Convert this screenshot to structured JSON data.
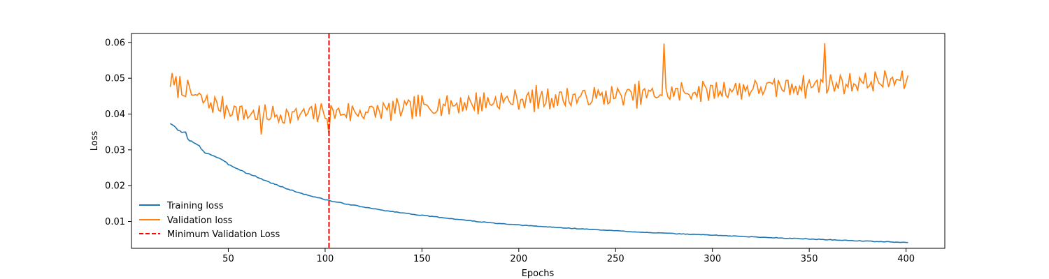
{
  "chart_data": {
    "type": "line",
    "xlabel": "Epochs",
    "ylabel": "Loss",
    "xlim": [
      0,
      420
    ],
    "ylim": [
      0.0025,
      0.0625
    ],
    "x_ticks": [
      50,
      100,
      150,
      200,
      250,
      300,
      350,
      400
    ],
    "y_ticks": [
      0.01,
      0.02,
      0.03,
      0.04,
      0.05,
      0.06
    ],
    "x_tick_labels": [
      "50",
      "100",
      "150",
      "200",
      "250",
      "300",
      "350",
      "400"
    ],
    "y_tick_labels": [
      "0.01",
      "0.02",
      "0.03",
      "0.04",
      "0.05",
      "0.06"
    ],
    "grid": false,
    "legend_position": "lower-left",
    "x_start": 20,
    "x_end": 401,
    "series": [
      {
        "name": "Training loss",
        "color": "#1f77b4",
        "keypoints": [
          [
            20,
            0.0375
          ],
          [
            22,
            0.0365
          ],
          [
            24,
            0.0355
          ],
          [
            26,
            0.0348
          ],
          [
            28,
            0.0352
          ],
          [
            29,
            0.033
          ],
          [
            32,
            0.032
          ],
          [
            35,
            0.031
          ],
          [
            38,
            0.0292
          ],
          [
            41,
            0.0287
          ],
          [
            45,
            0.0277
          ],
          [
            50,
            0.026
          ],
          [
            55,
            0.0247
          ],
          [
            60,
            0.0234
          ],
          [
            65,
            0.0224
          ],
          [
            70,
            0.0212
          ],
          [
            75,
            0.0202
          ],
          [
            80,
            0.0192
          ],
          [
            85,
            0.0183
          ],
          [
            90,
            0.0175
          ],
          [
            95,
            0.0168
          ],
          [
            100,
            0.0161
          ],
          [
            105,
            0.0155
          ],
          [
            110,
            0.015
          ],
          [
            120,
            0.014
          ],
          [
            130,
            0.0131
          ],
          [
            140,
            0.0124
          ],
          [
            150,
            0.0117
          ],
          [
            160,
            0.0111
          ],
          [
            170,
            0.0105
          ],
          [
            180,
            0.0099
          ],
          [
            190,
            0.0094
          ],
          [
            200,
            0.009
          ],
          [
            220,
            0.0083
          ],
          [
            240,
            0.0077
          ],
          [
            260,
            0.0071
          ],
          [
            280,
            0.0066
          ],
          [
            300,
            0.0062
          ],
          [
            320,
            0.0057
          ],
          [
            340,
            0.0053
          ],
          [
            360,
            0.0049
          ],
          [
            380,
            0.0045
          ],
          [
            401,
            0.0041
          ]
        ],
        "noise": 0.0005
      },
      {
        "name": "Validation loss",
        "color": "#ff7f0e",
        "keypoints": [
          [
            20,
            0.049
          ],
          [
            40,
            0.043
          ],
          [
            60,
            0.04
          ],
          [
            80,
            0.0395
          ],
          [
            100,
            0.0405
          ],
          [
            120,
            0.0405
          ],
          [
            150,
            0.042
          ],
          [
            200,
            0.044
          ],
          [
            250,
            0.045
          ],
          [
            300,
            0.0465
          ],
          [
            350,
            0.048
          ],
          [
            401,
            0.0495
          ]
        ],
        "noise": 0.0045,
        "seed": 7,
        "extremes": [
          [
            275,
            0.0597
          ],
          [
            358,
            0.0598
          ],
          [
            102,
            0.034
          ],
          [
            67,
            0.0343
          ]
        ]
      },
      {
        "name": "Minimum Validation Loss",
        "color": "#ff0000",
        "style": "dashed",
        "x": 102
      }
    ]
  }
}
